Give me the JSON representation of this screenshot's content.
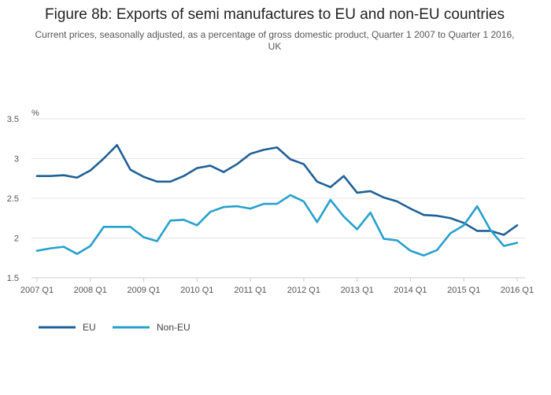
{
  "chart_data": {
    "type": "line",
    "title": "Figure 8b: Exports of semi manufactures to EU and non-EU countries",
    "subtitle_line1": "Current prices, seasonally adjusted, as a percentage of gross domestic product, Quarter 1 2007 to Quarter 1 2016,",
    "subtitle_line2": "UK",
    "ylabel": "%",
    "xlabel": "",
    "ylim": [
      1.5,
      3.5
    ],
    "yticks": [
      "1.5",
      "2",
      "2.5",
      "3",
      "3.5"
    ],
    "xticks": [
      "2007 Q1",
      "2008 Q1",
      "2009 Q1",
      "2010 Q1",
      "2011 Q1",
      "2012 Q1",
      "2013 Q1",
      "2014 Q1",
      "2015 Q1",
      "2016 Q1"
    ],
    "grid": true,
    "legend_position": "bottom-left",
    "series": [
      {
        "name": "EU",
        "color": "#206095",
        "values": [
          2.78,
          2.78,
          2.79,
          2.76,
          2.85,
          3.0,
          3.17,
          2.86,
          2.77,
          2.71,
          2.71,
          2.78,
          2.88,
          2.91,
          2.83,
          2.93,
          3.06,
          3.11,
          3.14,
          2.99,
          2.93,
          2.71,
          2.64,
          2.78,
          2.57,
          2.59,
          2.51,
          2.46,
          2.37,
          2.29,
          2.28,
          2.25,
          2.19,
          2.09,
          2.09,
          2.04,
          2.16
        ]
      },
      {
        "name": "Non-EU",
        "color": "#27a0cc",
        "values": [
          1.84,
          1.87,
          1.89,
          1.8,
          1.9,
          2.14,
          2.14,
          2.14,
          2.01,
          1.96,
          2.22,
          2.23,
          2.16,
          2.33,
          2.39,
          2.4,
          2.37,
          2.43,
          2.43,
          2.54,
          2.46,
          2.2,
          2.48,
          2.27,
          2.11,
          2.32,
          1.99,
          1.97,
          1.84,
          1.78,
          1.85,
          2.06,
          2.16,
          2.4,
          2.1,
          1.9,
          1.94
        ]
      }
    ]
  }
}
